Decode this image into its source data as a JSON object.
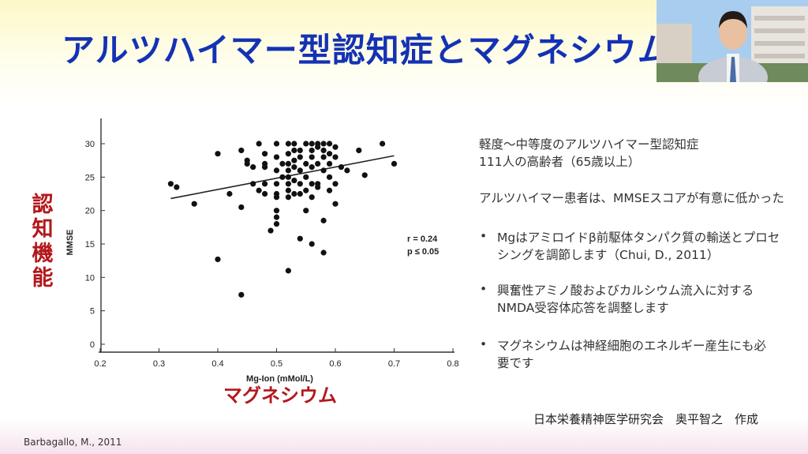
{
  "slide": {
    "title": "アルツハイマー型認知症とマグネシウム",
    "y_concept_label": "認\n知\n機\n能",
    "x_concept_label": "マグネシウム",
    "right_lines": [
      "軽度～中等度のアルツハイマー型認知症",
      "111人の高齢者（65歳以上）"
    ],
    "finding": "アルツハイマー患者は、MMSEスコアが有意に低かった",
    "bullets": [
      [
        "Mgはアミロイドβ前駆体タンパク質の輸送とプロセ",
        "シングを調節します（Chui, D., 2011）"
      ],
      [
        "興奮性アミノ酸およびカルシウム流入に対する",
        "NMDA受容体応答を調整します"
      ],
      [
        "マグネシウムは神経細胞のエネルギー産生にも必",
        "要です"
      ]
    ],
    "bullet_char": "•",
    "footer": "日本栄養精神医学研究会　奥平智之　作成",
    "citation": "Barbagallo, M., 2011"
  },
  "colors": {
    "title": "#1432b4",
    "accent_red": "#b3171c",
    "point": "#111111"
  },
  "chart_data": {
    "type": "scatter",
    "xlabel": "Mg-Ion (mMol/L)",
    "ylabel": "MMSE",
    "xlim": [
      0.2,
      0.8
    ],
    "ylim": [
      0,
      32
    ],
    "xticks": [
      "0.2",
      "0.3",
      "0.4",
      "0.5",
      "0.6",
      "0.7",
      "0.8"
    ],
    "yticks": [
      "0",
      "5",
      "10",
      "15",
      "20",
      "25",
      "30"
    ],
    "annotation": [
      "r = 0.24",
      "p ≤ 0.05"
    ],
    "trendline": [
      [
        0.32,
        21.8
      ],
      [
        0.7,
        28.2
      ]
    ],
    "points": [
      [
        0.32,
        24
      ],
      [
        0.33,
        23.5
      ],
      [
        0.36,
        21
      ],
      [
        0.4,
        28.5
      ],
      [
        0.4,
        12.7
      ],
      [
        0.42,
        22.5
      ],
      [
        0.44,
        29
      ],
      [
        0.44,
        20.5
      ],
      [
        0.44,
        7.4
      ],
      [
        0.45,
        27.5
      ],
      [
        0.45,
        27
      ],
      [
        0.46,
        26.5
      ],
      [
        0.46,
        24
      ],
      [
        0.47,
        30
      ],
      [
        0.47,
        23
      ],
      [
        0.48,
        28.5
      ],
      [
        0.48,
        27
      ],
      [
        0.48,
        26.5
      ],
      [
        0.48,
        24
      ],
      [
        0.48,
        22.5
      ],
      [
        0.49,
        17
      ],
      [
        0.5,
        30
      ],
      [
        0.5,
        28
      ],
      [
        0.5,
        26
      ],
      [
        0.5,
        24
      ],
      [
        0.5,
        22.5
      ],
      [
        0.5,
        22
      ],
      [
        0.5,
        20
      ],
      [
        0.5,
        19
      ],
      [
        0.5,
        18
      ],
      [
        0.51,
        27
      ],
      [
        0.51,
        25
      ],
      [
        0.52,
        30
      ],
      [
        0.52,
        28.5
      ],
      [
        0.52,
        27
      ],
      [
        0.52,
        26
      ],
      [
        0.52,
        25
      ],
      [
        0.52,
        24
      ],
      [
        0.52,
        23
      ],
      [
        0.52,
        22
      ],
      [
        0.52,
        11
      ],
      [
        0.53,
        30
      ],
      [
        0.53,
        29
      ],
      [
        0.53,
        27.5
      ],
      [
        0.53,
        26.5
      ],
      [
        0.53,
        24.5
      ],
      [
        0.53,
        22.5
      ],
      [
        0.54,
        29
      ],
      [
        0.54,
        28
      ],
      [
        0.54,
        26
      ],
      [
        0.54,
        24
      ],
      [
        0.54,
        22.5
      ],
      [
        0.54,
        15.8
      ],
      [
        0.55,
        30
      ],
      [
        0.55,
        27
      ],
      [
        0.55,
        25
      ],
      [
        0.55,
        23
      ],
      [
        0.55,
        20
      ],
      [
        0.56,
        30
      ],
      [
        0.56,
        29
      ],
      [
        0.56,
        28
      ],
      [
        0.56,
        26.5
      ],
      [
        0.56,
        24
      ],
      [
        0.56,
        22
      ],
      [
        0.56,
        15
      ],
      [
        0.57,
        30
      ],
      [
        0.57,
        29.5
      ],
      [
        0.57,
        27
      ],
      [
        0.57,
        24
      ],
      [
        0.57,
        23.5
      ],
      [
        0.58,
        30
      ],
      [
        0.58,
        29
      ],
      [
        0.58,
        28
      ],
      [
        0.58,
        26
      ],
      [
        0.58,
        18.5
      ],
      [
        0.58,
        13.7
      ],
      [
        0.59,
        30
      ],
      [
        0.59,
        28.5
      ],
      [
        0.59,
        27
      ],
      [
        0.59,
        25
      ],
      [
        0.59,
        23
      ],
      [
        0.6,
        29.5
      ],
      [
        0.6,
        28
      ],
      [
        0.6,
        24
      ],
      [
        0.6,
        21
      ],
      [
        0.61,
        26.5
      ],
      [
        0.62,
        26
      ],
      [
        0.64,
        29
      ],
      [
        0.65,
        25.3
      ],
      [
        0.68,
        30
      ],
      [
        0.7,
        27
      ]
    ]
  }
}
